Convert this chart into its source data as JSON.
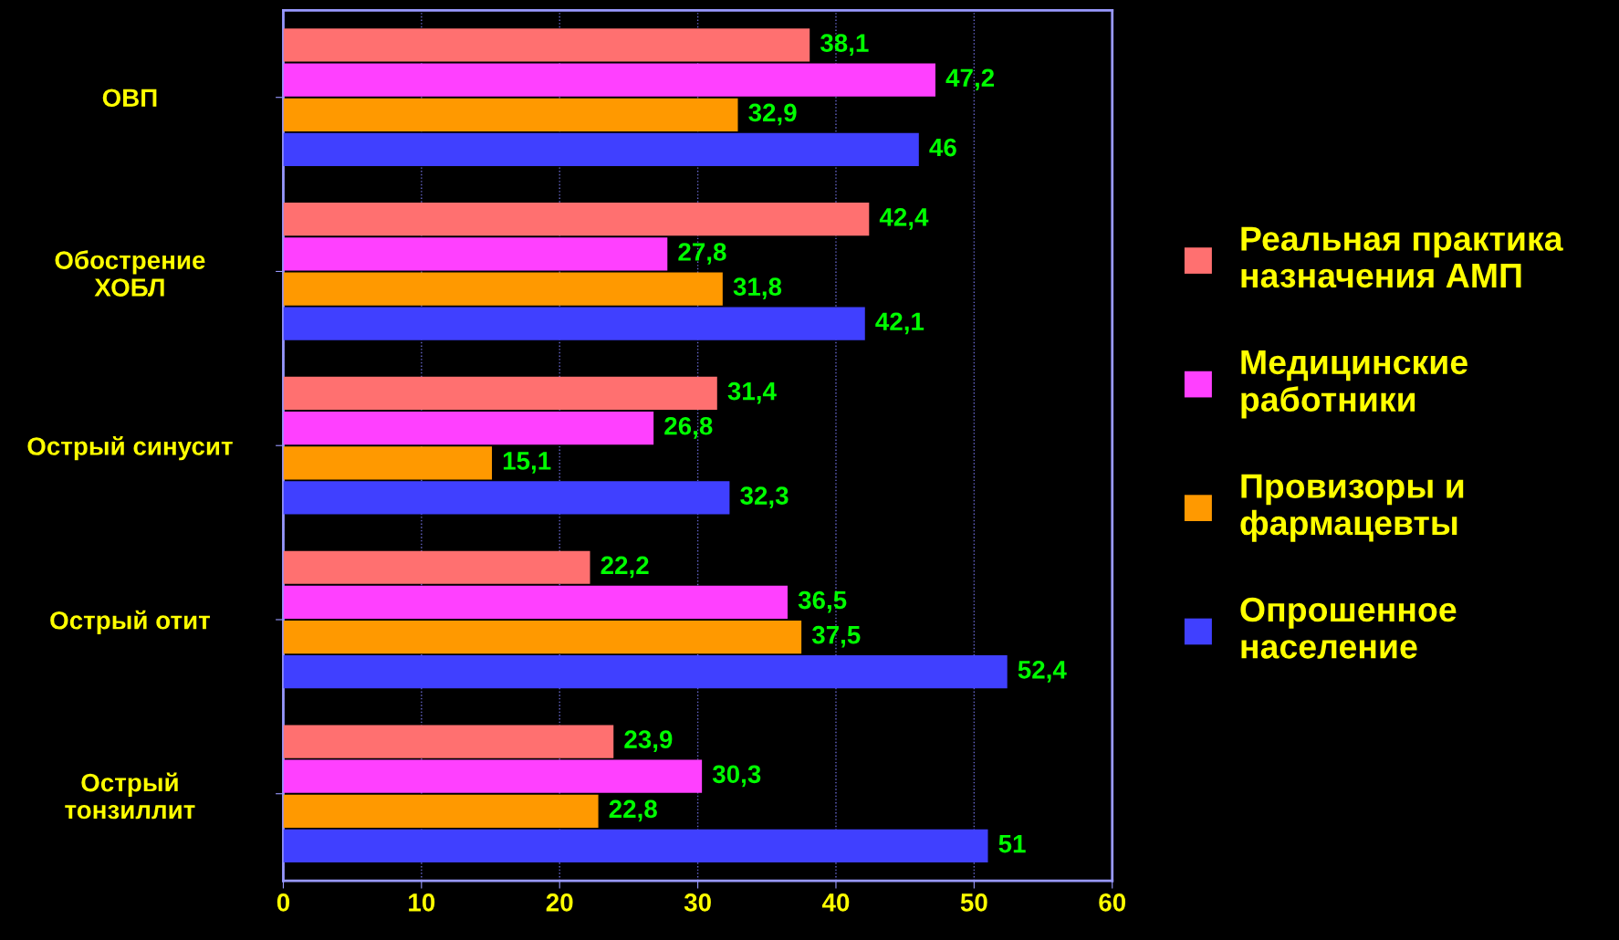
{
  "chart_data": {
    "type": "bar",
    "orientation": "horizontal",
    "categories": [
      "ОВП",
      "Обострение\nХОБЛ",
      "Острый синусит",
      "Острый отит",
      "Острый\nтонзиллит"
    ],
    "series": [
      {
        "name": "Реальная практика\nназначения АМП",
        "color": "#ff7070",
        "values": [
          38.1,
          42.4,
          31.4,
          22.2,
          23.9
        ],
        "value_labels": [
          "38,1",
          "42,4",
          "31,4",
          "22,2",
          "23,9"
        ]
      },
      {
        "name": "Медицинские\nработники",
        "color": "#ff40ff",
        "values": [
          47.2,
          27.8,
          26.8,
          36.5,
          30.3
        ],
        "value_labels": [
          "47,2",
          "27,8",
          "26,8",
          "36,5",
          "30,3"
        ]
      },
      {
        "name": "Провизоры и\nфармацевты",
        "color": "#ff9900",
        "values": [
          32.9,
          31.8,
          15.1,
          37.5,
          22.8
        ],
        "value_labels": [
          "32,9",
          "31,8",
          "15,1",
          "37,5",
          "22,8"
        ]
      },
      {
        "name": "Опрошенное\nнаселение",
        "color": "#4040ff",
        "values": [
          46,
          42.1,
          32.3,
          52.4,
          51
        ],
        "value_labels": [
          "46",
          "42,1",
          "32,3",
          "52,4",
          "51"
        ]
      }
    ],
    "xlim": [
      0,
      60
    ],
    "xticks": [
      0,
      10,
      20,
      30,
      40,
      50,
      60
    ],
    "grid": "x",
    "legend": "right"
  }
}
